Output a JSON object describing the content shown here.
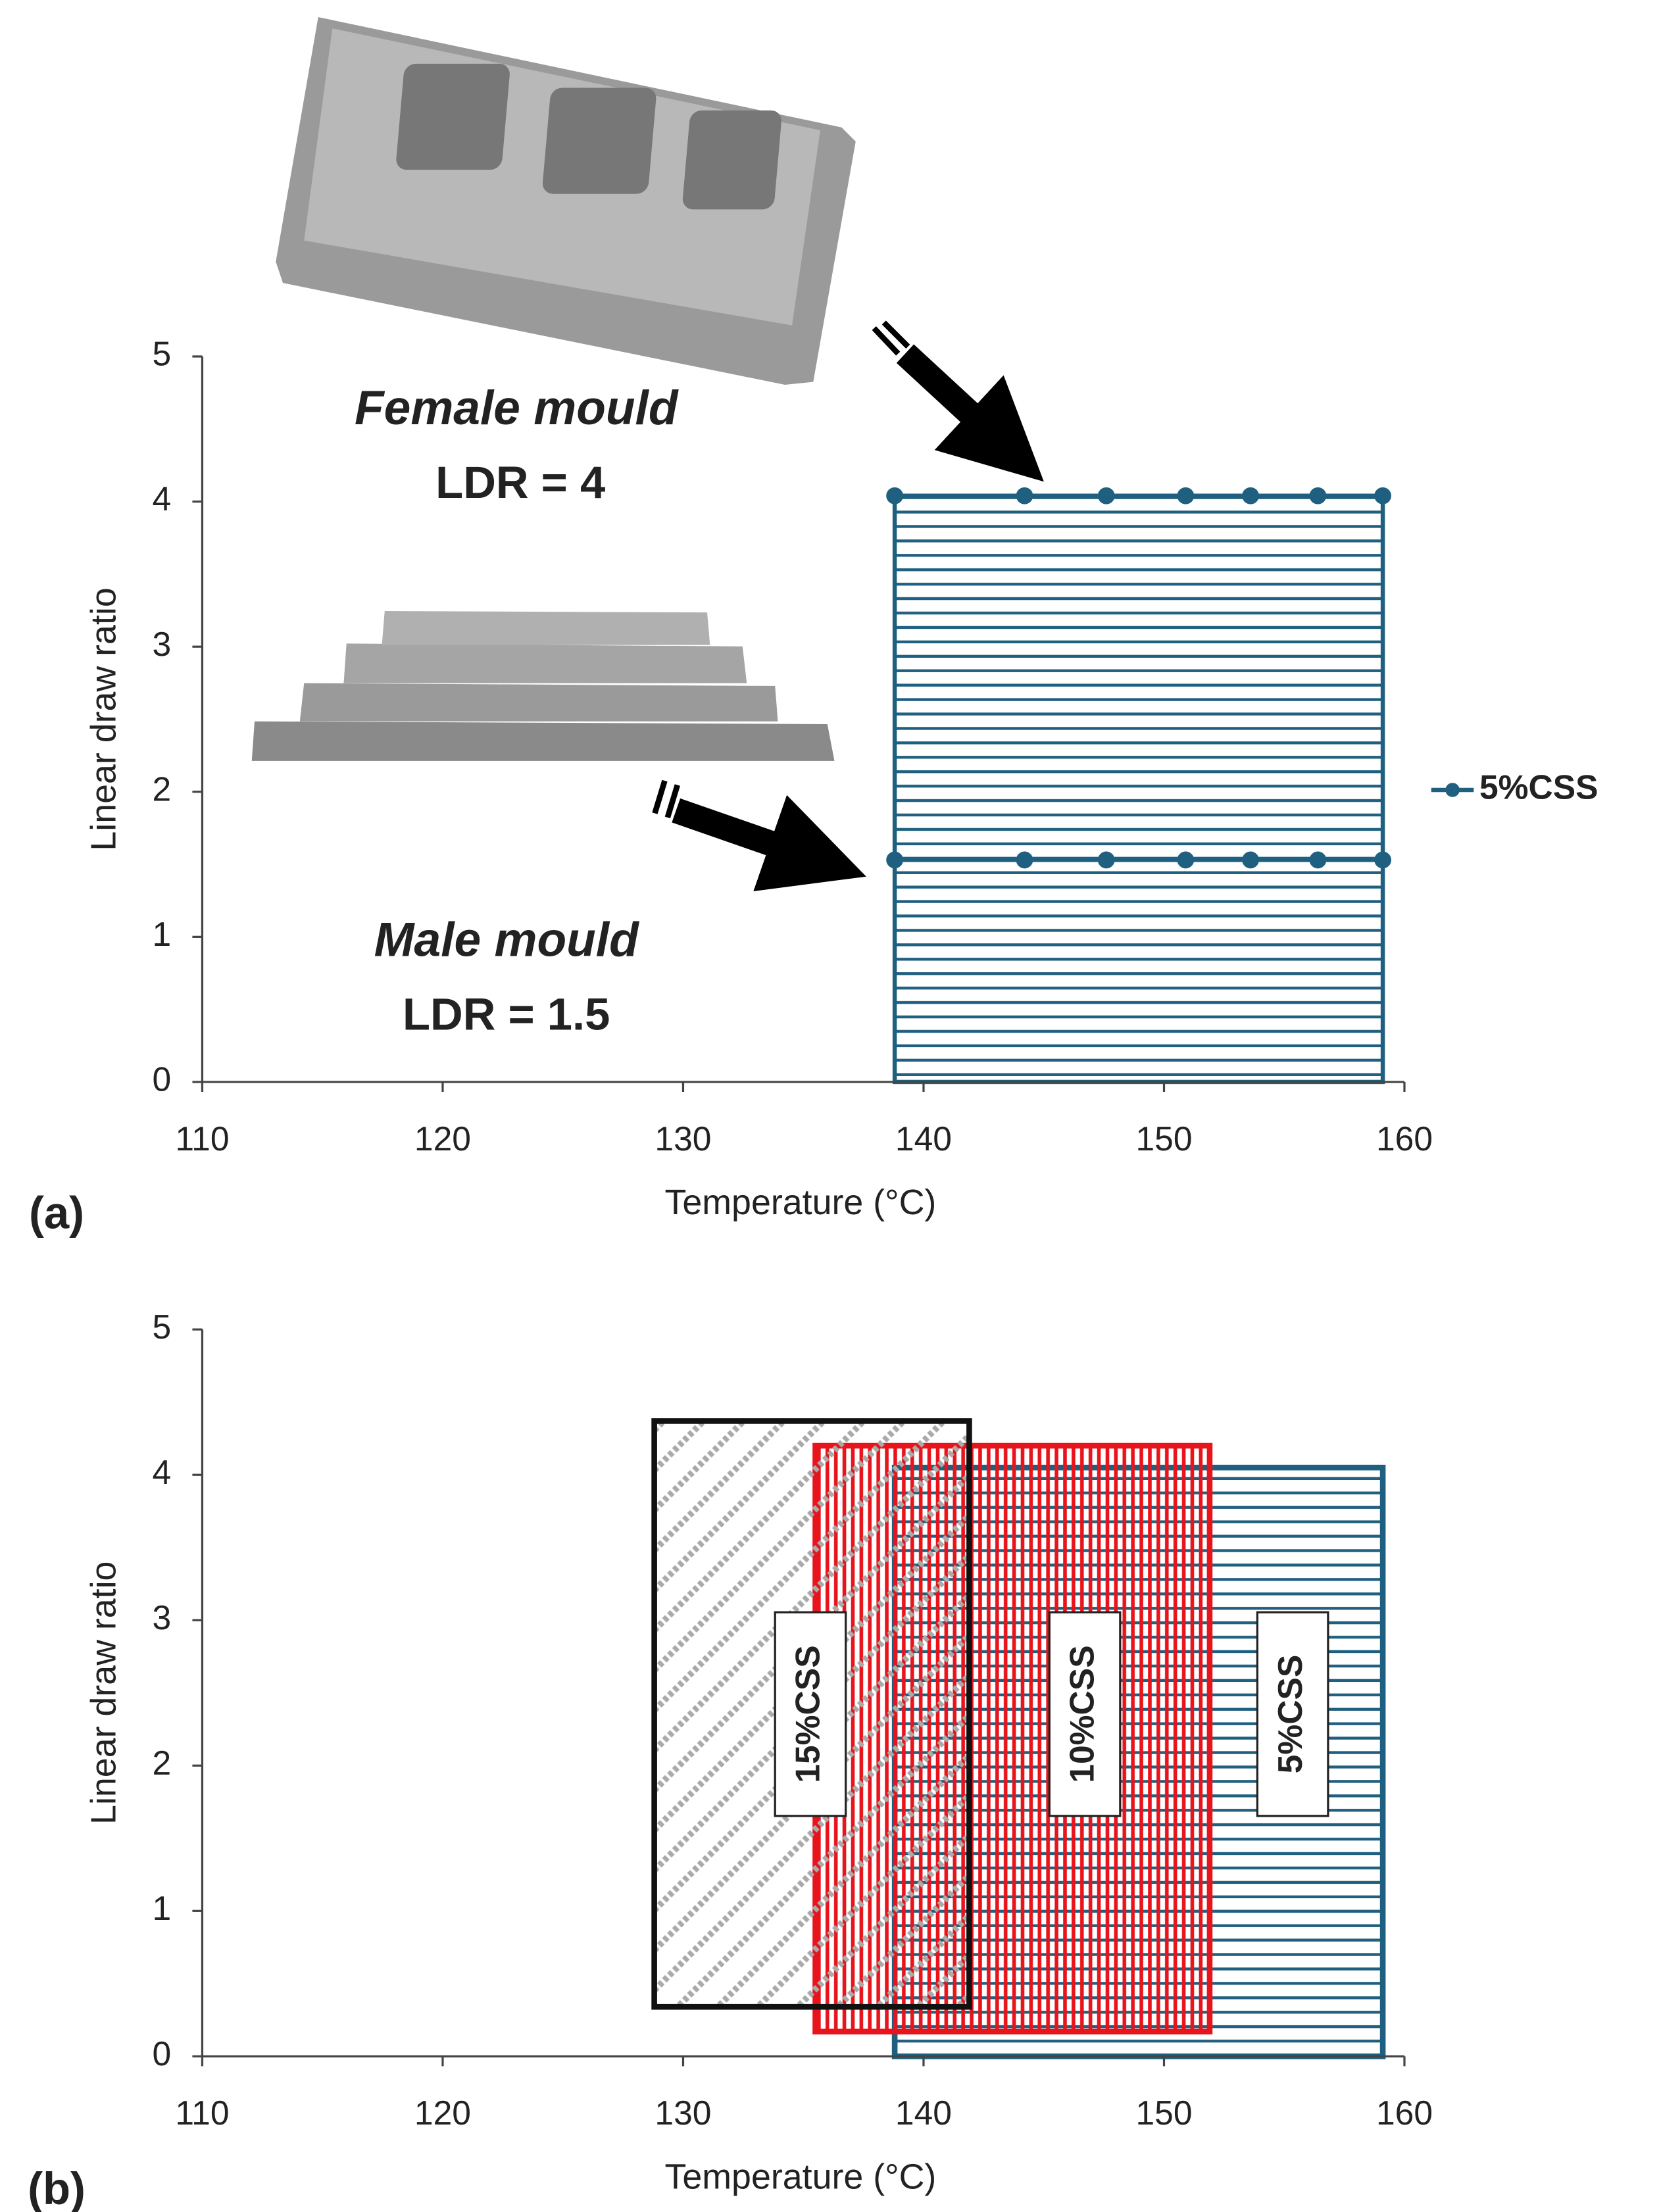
{
  "chart_data": [
    {
      "type": "region",
      "xlabel": "Temperature (°C)",
      "ylabel": "Linear draw ratio",
      "panel_label": "(a)",
      "xlim": [
        110,
        160
      ],
      "xticks": [
        110,
        120,
        130,
        140,
        150,
        160
      ],
      "ylim": [
        0,
        5
      ],
      "yticks": [
        0,
        1,
        2,
        3,
        4,
        5
      ],
      "legend": "right",
      "annotations": [
        "Female mould",
        "LDR = 4",
        "Male mould",
        "LDR = 1.5"
      ],
      "series": [
        {
          "name": "5%CSS",
          "color": "#1f5f7f",
          "pattern": "horizontal",
          "region": [
            138.8,
            159.1,
            0,
            4.04
          ],
          "x": [
            138.8,
            144.2,
            147.6,
            150.9,
            153.6,
            156.4,
            159.1
          ],
          "values": [
            4.04,
            4.04,
            4.04,
            4.04,
            4.04,
            4.04,
            4.04
          ],
          "values_lower": [
            1.53,
            1.53,
            1.53,
            1.53,
            1.53,
            1.53,
            1.53
          ]
        }
      ]
    },
    {
      "type": "region",
      "xlabel": "Temperature (°C)",
      "ylabel": "Linear draw ratio",
      "panel_label": "(b)",
      "xlim": [
        110,
        160
      ],
      "xticks": [
        110,
        120,
        130,
        140,
        150,
        160
      ],
      "ylim": [
        0,
        5
      ],
      "yticks": [
        0,
        1,
        2,
        3,
        4,
        5
      ],
      "series": [
        {
          "name": "15%CSS",
          "color": "#aaaaaa",
          "border": "#111111",
          "pattern": "diagonal",
          "region": [
            128.8,
            141.9,
            0.34,
            4.37
          ]
        },
        {
          "name": "10%CSS",
          "color": "#e8141c",
          "border": "#e8141c",
          "pattern": "vertical",
          "region": [
            135.5,
            151.9,
            0.17,
            4.2
          ]
        },
        {
          "name": "5%CSS",
          "color": "#1f5f7f",
          "border": "#1f5f7f",
          "pattern": "horizontal",
          "region": [
            138.8,
            159.1,
            0,
            4.05
          ]
        }
      ]
    }
  ]
}
